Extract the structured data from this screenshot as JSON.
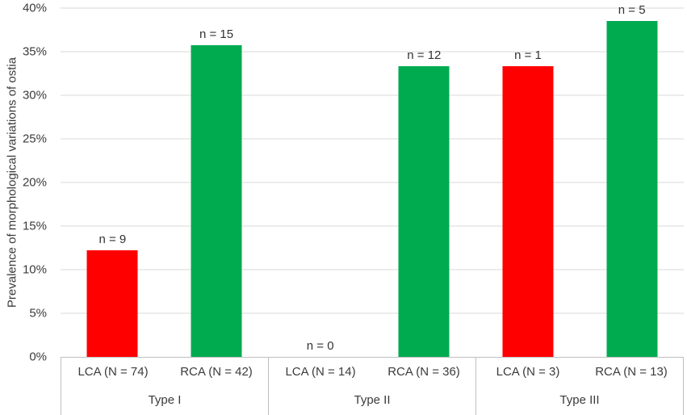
{
  "chart_data": {
    "type": "bar",
    "title": "",
    "xlabel": "",
    "ylabel": "Prevalence of morphological variations of ostia",
    "ylim": [
      0,
      40
    ],
    "ytick_step": 5,
    "ytick_labels": [
      "0%",
      "5%",
      "10%",
      "15%",
      "20%",
      "25%",
      "30%",
      "35%",
      "40%"
    ],
    "grid": true,
    "legend": "none",
    "colors": {
      "red": "#ff0000",
      "green": "#00ab50",
      "gridline": "#d9d9d9",
      "axis_line": "#bfbfbf",
      "text": "#3b3b3b"
    },
    "groups": [
      {
        "label": "Type I",
        "bars": [
          {
            "series": "LCA",
            "label": "LCA (N = 74)",
            "value": 12.2,
            "count_label": "n = 9",
            "color": "red"
          },
          {
            "series": "RCA",
            "label": "RCA (N = 42)",
            "value": 35.7,
            "count_label": "n = 15",
            "color": "green"
          }
        ]
      },
      {
        "label": "Type II",
        "bars": [
          {
            "series": "LCA",
            "label": "LCA (N = 14)",
            "value": 0,
            "count_label": "n = 0",
            "color": "red"
          },
          {
            "series": "RCA",
            "label": "RCA (N = 36)",
            "value": 33.3,
            "count_label": "n = 12",
            "color": "green"
          }
        ]
      },
      {
        "label": "Type III",
        "bars": [
          {
            "series": "LCA",
            "label": "LCA (N = 3)",
            "value": 33.3,
            "count_label": "n = 1",
            "color": "red"
          },
          {
            "series": "RCA",
            "label": "RCA (N = 13)",
            "value": 38.5,
            "count_label": "n = 5",
            "color": "green"
          }
        ]
      }
    ]
  }
}
